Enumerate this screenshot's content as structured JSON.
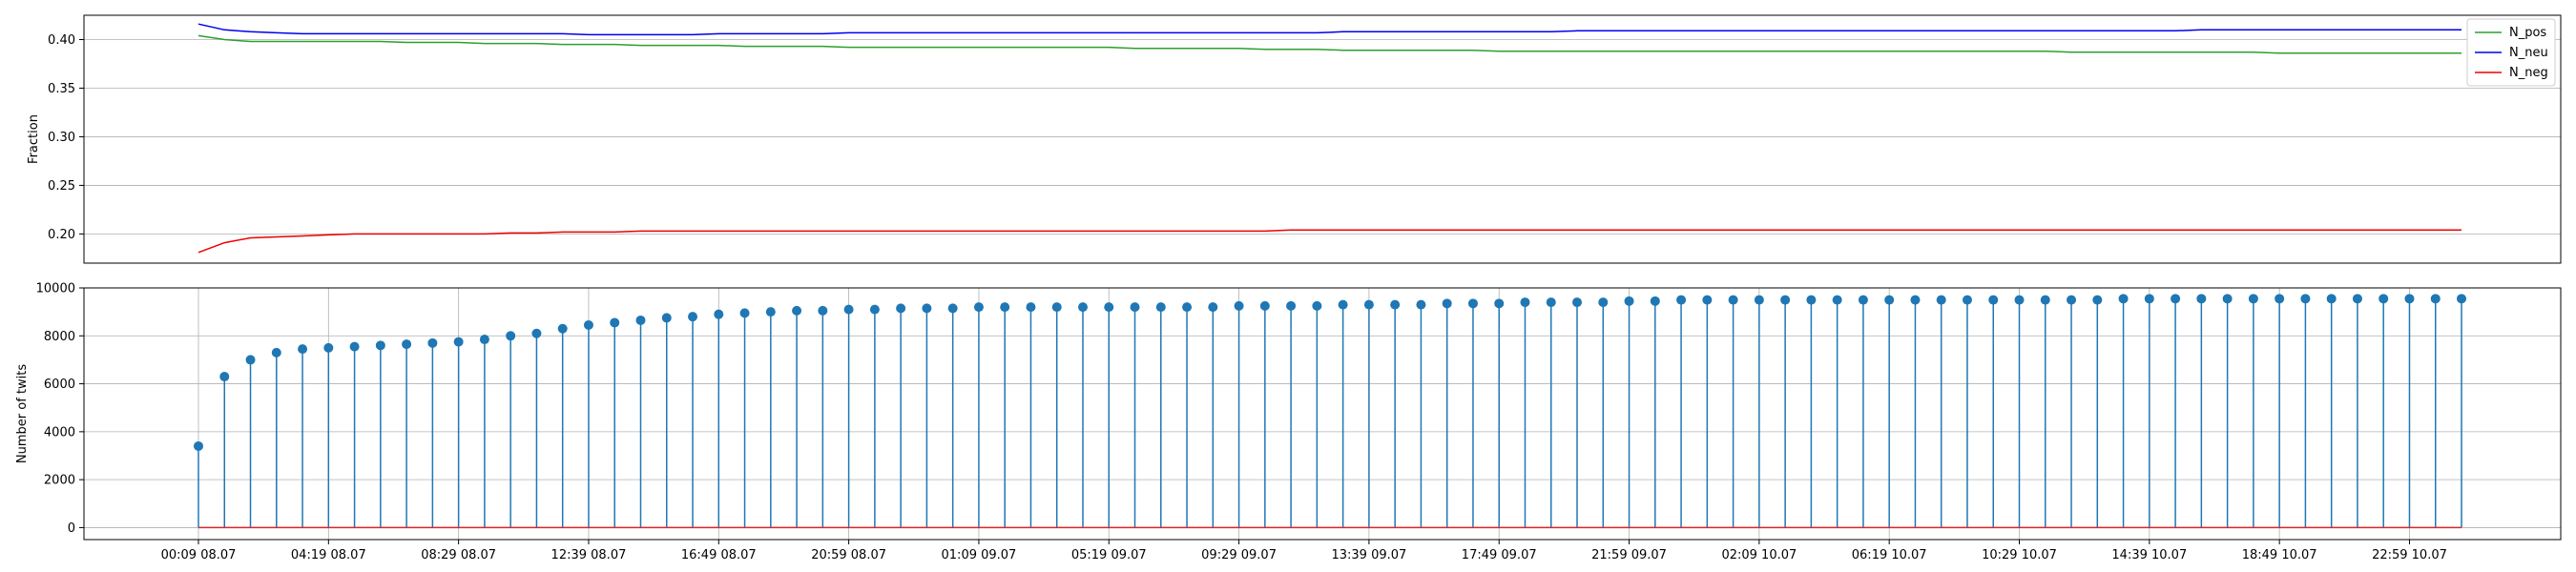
{
  "chart_data": [
    {
      "type": "line",
      "ylabel": "Fraction",
      "xlabel": "",
      "ylim": [
        0.17,
        0.425
      ],
      "yticks": [
        "0.20",
        "0.25",
        "0.30",
        "0.35",
        "0.40"
      ],
      "ytick_values": [
        0.2,
        0.25,
        0.3,
        0.35,
        0.4
      ],
      "grid": "y",
      "legend_position": "top-right",
      "x_count": 88,
      "series": [
        {
          "name": "N_pos",
          "color": "#2ca02c",
          "values": [
            0.404,
            0.4,
            0.398,
            0.398,
            0.398,
            0.398,
            0.398,
            0.398,
            0.397,
            0.397,
            0.397,
            0.396,
            0.396,
            0.396,
            0.395,
            0.395,
            0.395,
            0.394,
            0.394,
            0.394,
            0.394,
            0.393,
            0.393,
            0.393,
            0.393,
            0.392,
            0.392,
            0.392,
            0.392,
            0.392,
            0.392,
            0.392,
            0.392,
            0.392,
            0.392,
            0.392,
            0.391,
            0.391,
            0.391,
            0.391,
            0.391,
            0.39,
            0.39,
            0.39,
            0.389,
            0.389,
            0.389,
            0.389,
            0.389,
            0.389,
            0.388,
            0.388,
            0.388,
            0.388,
            0.388,
            0.388,
            0.388,
            0.388,
            0.388,
            0.388,
            0.388,
            0.388,
            0.388,
            0.388,
            0.388,
            0.388,
            0.388,
            0.388,
            0.388,
            0.388,
            0.388,
            0.388,
            0.387,
            0.387,
            0.387,
            0.387,
            0.387,
            0.387,
            0.387,
            0.387,
            0.386,
            0.386,
            0.386,
            0.386,
            0.386,
            0.386,
            0.386,
            0.386
          ]
        },
        {
          "name": "N_neu",
          "color": "#0000ee",
          "values": [
            0.416,
            0.41,
            0.408,
            0.407,
            0.406,
            0.406,
            0.406,
            0.406,
            0.406,
            0.406,
            0.406,
            0.406,
            0.406,
            0.406,
            0.406,
            0.405,
            0.405,
            0.405,
            0.405,
            0.405,
            0.406,
            0.406,
            0.406,
            0.406,
            0.406,
            0.407,
            0.407,
            0.407,
            0.407,
            0.407,
            0.407,
            0.407,
            0.407,
            0.407,
            0.407,
            0.407,
            0.407,
            0.407,
            0.407,
            0.407,
            0.407,
            0.407,
            0.407,
            0.407,
            0.408,
            0.408,
            0.408,
            0.408,
            0.408,
            0.408,
            0.408,
            0.408,
            0.408,
            0.409,
            0.409,
            0.409,
            0.409,
            0.409,
            0.409,
            0.409,
            0.409,
            0.409,
            0.409,
            0.409,
            0.409,
            0.409,
            0.409,
            0.409,
            0.409,
            0.409,
            0.409,
            0.409,
            0.409,
            0.409,
            0.409,
            0.409,
            0.409,
            0.41,
            0.41,
            0.41,
            0.41,
            0.41,
            0.41,
            0.41,
            0.41,
            0.41,
            0.41,
            0.41
          ]
        },
        {
          "name": "N_neg",
          "color": "#ee0000",
          "values": [
            0.181,
            0.191,
            0.196,
            0.197,
            0.198,
            0.199,
            0.2,
            0.2,
            0.2,
            0.2,
            0.2,
            0.2,
            0.201,
            0.201,
            0.202,
            0.202,
            0.202,
            0.203,
            0.203,
            0.203,
            0.203,
            0.203,
            0.203,
            0.203,
            0.203,
            0.203,
            0.203,
            0.203,
            0.203,
            0.203,
            0.203,
            0.203,
            0.203,
            0.203,
            0.203,
            0.203,
            0.203,
            0.203,
            0.203,
            0.203,
            0.203,
            0.203,
            0.204,
            0.204,
            0.204,
            0.204,
            0.204,
            0.204,
            0.204,
            0.204,
            0.204,
            0.204,
            0.204,
            0.204,
            0.204,
            0.204,
            0.204,
            0.204,
            0.204,
            0.204,
            0.204,
            0.204,
            0.204,
            0.204,
            0.204,
            0.204,
            0.204,
            0.204,
            0.204,
            0.204,
            0.204,
            0.204,
            0.204,
            0.204,
            0.204,
            0.204,
            0.204,
            0.204,
            0.204,
            0.204,
            0.204,
            0.204,
            0.204,
            0.204,
            0.204,
            0.204,
            0.204,
            0.204
          ]
        }
      ]
    },
    {
      "type": "stem",
      "ylabel": "Number of twits",
      "xlabel": "",
      "ylim": [
        -500,
        10000
      ],
      "yticks": [
        "0",
        "2000",
        "4000",
        "6000",
        "8000",
        "10000"
      ],
      "ytick_values": [
        0,
        2000,
        4000,
        6000,
        8000,
        10000
      ],
      "grid": "both",
      "x_count": 88,
      "xticks": [
        "00:09 08.07",
        "04:19 08.07",
        "08:29 08.07",
        "12:39 08.07",
        "16:49 08.07",
        "20:59 08.07",
        "01:09 09.07",
        "05:19 09.07",
        "09:29 09.07",
        "13:39 09.07",
        "17:49 09.07",
        "21:59 09.07",
        "02:09 10.07",
        "06:19 10.07",
        "10:29 10.07",
        "14:39 10.07",
        "18:49 10.07",
        "22:59 10.07"
      ],
      "xtick_positions": [
        0,
        5,
        10,
        15,
        20,
        25,
        30,
        35,
        40,
        45,
        50,
        55,
        60,
        65,
        70,
        75,
        80,
        85
      ],
      "stem_color": "#1f77b4",
      "baseline_color": "#d62728",
      "values": [
        3400,
        6300,
        7000,
        7300,
        7450,
        7500,
        7550,
        7600,
        7650,
        7700,
        7750,
        7850,
        8000,
        8100,
        8300,
        8450,
        8550,
        8650,
        8750,
        8800,
        8900,
        8950,
        9000,
        9050,
        9050,
        9100,
        9100,
        9150,
        9150,
        9150,
        9200,
        9200,
        9200,
        9200,
        9200,
        9200,
        9200,
        9200,
        9200,
        9200,
        9250,
        9250,
        9250,
        9250,
        9300,
        9300,
        9300,
        9300,
        9350,
        9350,
        9350,
        9400,
        9400,
        9400,
        9400,
        9450,
        9450,
        9500,
        9500,
        9500,
        9500,
        9500,
        9500,
        9500,
        9500,
        9500,
        9500,
        9500,
        9500,
        9500,
        9500,
        9500,
        9500,
        9500,
        9550,
        9550,
        9550,
        9550,
        9550,
        9550,
        9550,
        9550,
        9550,
        9550,
        9550,
        9550,
        9550,
        9550
      ]
    }
  ]
}
